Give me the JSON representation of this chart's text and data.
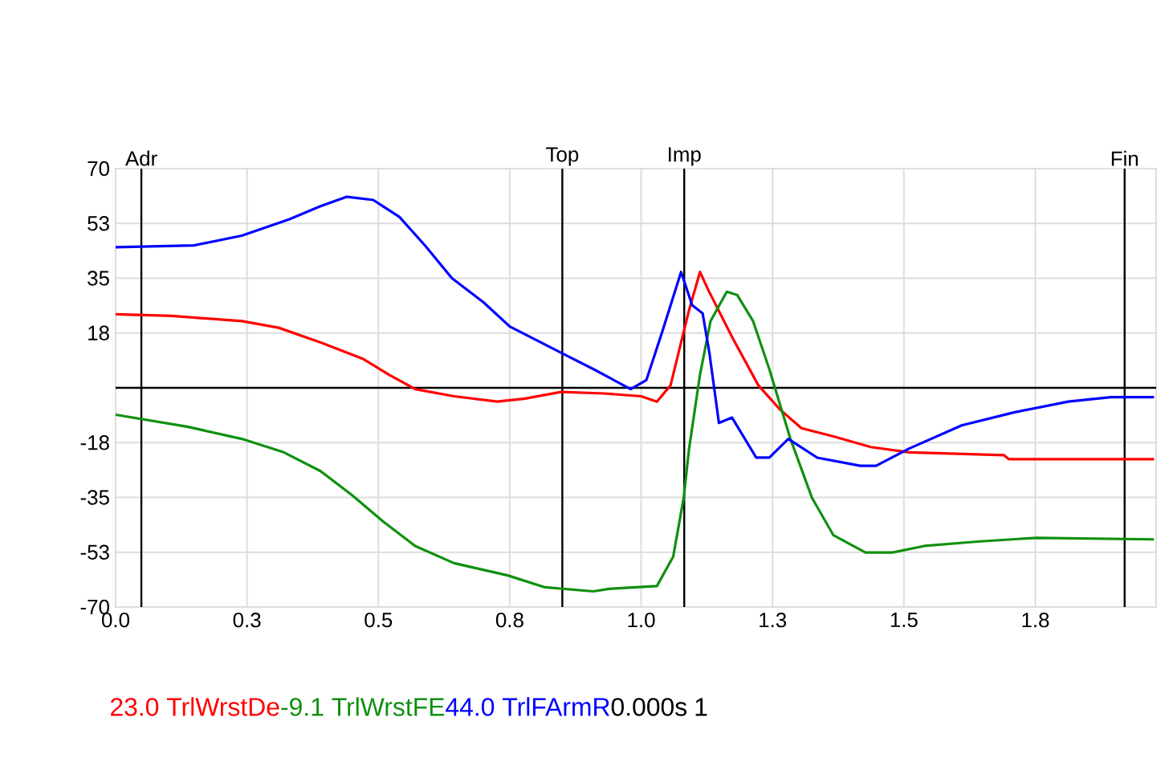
{
  "chart_data": {
    "type": "line",
    "xlim": [
      0,
      1.98
    ],
    "ylim": [
      -70,
      70
    ],
    "xticks": [
      {
        "value": 0,
        "label": "0.0"
      },
      {
        "value": 0.25,
        "label": "0.3"
      },
      0.5,
      {
        "value": 0.75,
        "label": "0.8"
      },
      {
        "value": 1,
        "label": "1.0"
      },
      {
        "value": 1.25,
        "label": "1.3"
      },
      1.5,
      {
        "value": 1.75,
        "label": "1.8"
      }
    ],
    "yticks": [
      -70,
      {
        "value": -52.5,
        "label": "-53"
      },
      -35,
      {
        "value": -17.5,
        "label": "-18"
      },
      {
        "value": 0,
        "label": null
      },
      {
        "value": 17.5,
        "label": "18"
      },
      35,
      {
        "value": 52.5,
        "label": "53"
      },
      70
    ],
    "grid": true,
    "legend": "bottom",
    "ref_lines": [
      {
        "axis": "y",
        "value": 0,
        "color": "#000000"
      },
      {
        "axis": "x",
        "value": 0.049,
        "label": "Adr",
        "color": "#000000"
      },
      {
        "axis": "x",
        "value": 0.85,
        "label": "Top",
        "color": "#000000"
      },
      {
        "axis": "x",
        "value": 1.082,
        "label": "Imp",
        "color": "#000000"
      },
      {
        "axis": "x",
        "value": 1.92,
        "label": "Fin",
        "color": "#000000"
      }
    ],
    "annotations": [
      "23.0",
      "-9.1",
      "44.0",
      "0.000s",
      "1"
    ],
    "series": [
      {
        "name": "TrlWrstDe",
        "color": "#ff0000",
        "x": [
          0,
          0.106,
          0.24,
          0.31,
          0.39,
          0.47,
          0.52,
          0.57,
          0.644,
          0.726,
          0.777,
          0.848,
          0.929,
          1.0,
          1.03,
          1.056,
          1.076,
          1.091,
          1.112,
          1.127,
          1.173,
          1.223,
          1.264,
          1.305,
          1.366,
          1.437,
          1.51,
          1.69,
          1.7,
          1.976
        ],
        "values": [
          23.5,
          23,
          21.3,
          19.2,
          14.5,
          9.3,
          4.2,
          -0.4,
          -2.7,
          -4.4,
          -3.5,
          -1.3,
          -1.8,
          -2.7,
          -4.4,
          0.8,
          14.5,
          24.7,
          37,
          31.5,
          16.2,
          0.8,
          -6.9,
          -12.9,
          -15.5,
          -18.9,
          -20.6,
          -21.5,
          -22.8,
          -22.8
        ]
      },
      {
        "name": "TrlWrstFE",
        "color": "#109010",
        "x": [
          0,
          0.136,
          0.24,
          0.32,
          0.39,
          0.45,
          0.51,
          0.57,
          0.644,
          0.746,
          0.817,
          0.909,
          0.939,
          1.03,
          1.061,
          1.081,
          1.091,
          1.112,
          1.132,
          1.163,
          1.183,
          1.213,
          1.244,
          1.284,
          1.325,
          1.366,
          1.427,
          1.478,
          1.539,
          1.64,
          1.752,
          1.976
        ],
        "values": [
          -8.6,
          -12.4,
          -16.3,
          -20.6,
          -26.6,
          -34.3,
          -42.8,
          -50.5,
          -56,
          -59.9,
          -63.7,
          -65,
          -64.2,
          -63.3,
          -53.9,
          -35.1,
          -19.7,
          4.2,
          21.3,
          30.7,
          29.6,
          21.3,
          5.9,
          -16.3,
          -35.1,
          -47.1,
          -52.6,
          -52.6,
          -50.5,
          -49.1,
          -47.9,
          -48.4
        ]
      },
      {
        "name": "TrlFArmR",
        "color": "#0000ff",
        "x": [
          0,
          0.15,
          0.24,
          0.33,
          0.39,
          0.44,
          0.49,
          0.54,
          0.59,
          0.64,
          0.7,
          0.75,
          0.85,
          0.91,
          0.98,
          1.01,
          1.04,
          1.076,
          1.097,
          1.117,
          1.13,
          1.148,
          1.173,
          1.219,
          1.244,
          1.28,
          1.335,
          1.417,
          1.447,
          1.51,
          1.61,
          1.711,
          1.813,
          1.894,
          1.976
        ],
        "values": [
          44.9,
          45.5,
          48.6,
          53.8,
          58,
          61,
          60,
          54.6,
          45.2,
          35,
          27.3,
          19.6,
          11,
          5.9,
          -0.4,
          2.5,
          17.8,
          37,
          26.4,
          23.8,
          11,
          -11.2,
          -9.5,
          -22.3,
          -22.3,
          -16.3,
          -22.3,
          -24.9,
          -24.9,
          -19.4,
          -12,
          -7.8,
          -4.4,
          -3,
          -3
        ]
      }
    ]
  }
}
